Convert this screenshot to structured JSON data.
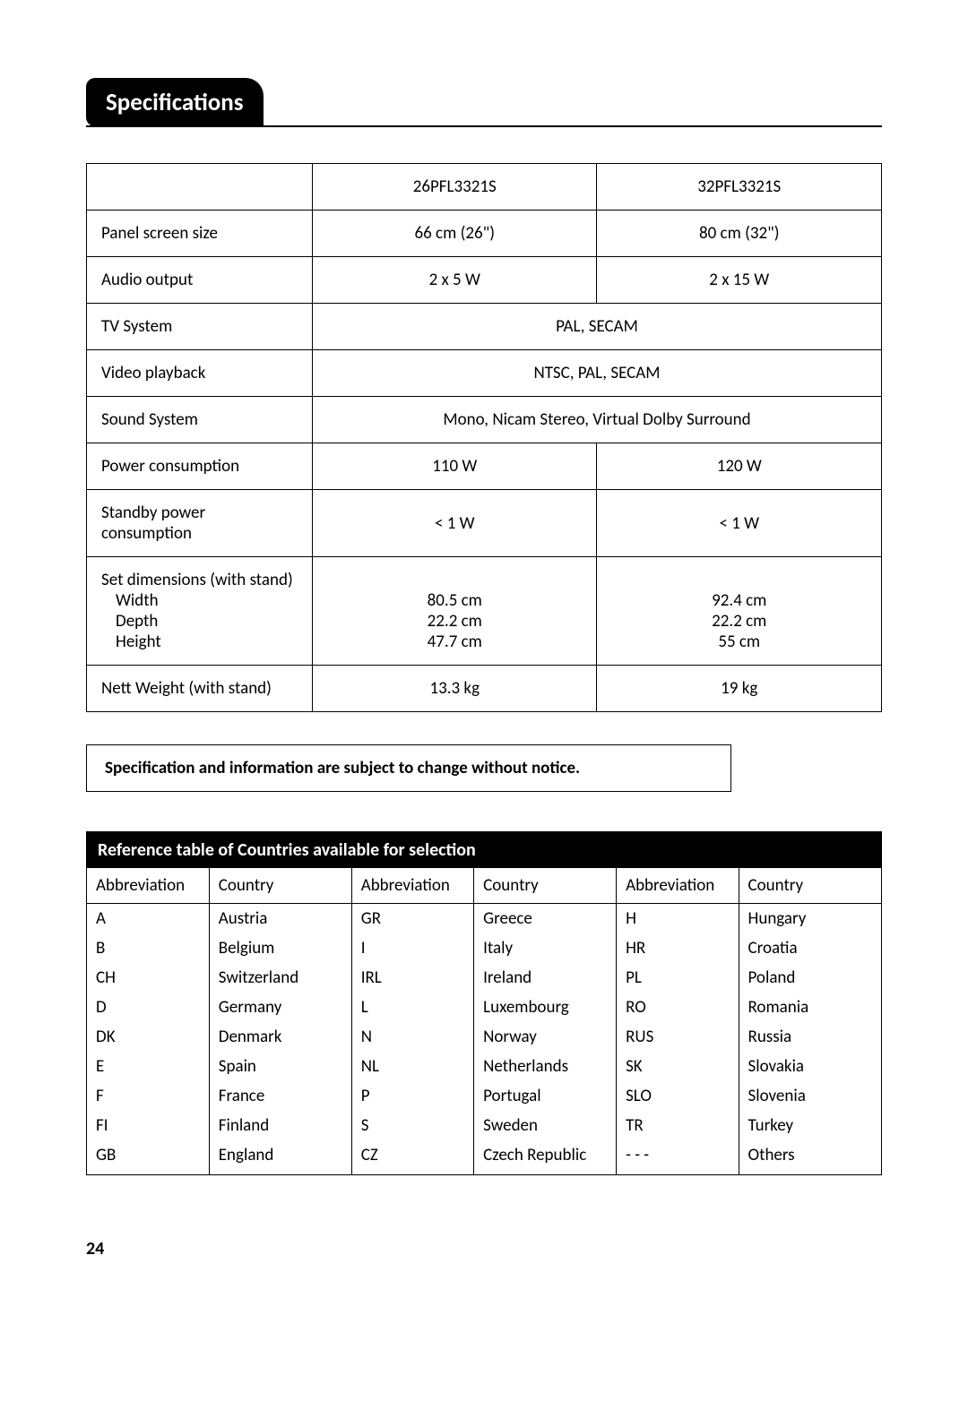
{
  "title": "Specifications",
  "page_number": "24",
  "notice": "Specification and information are subject to change without notice.",
  "spec_table": {
    "models": [
      "26PFL3321S",
      "32PFL3321S"
    ],
    "rows": [
      {
        "label": "Panel screen size",
        "type": "pair",
        "values": [
          "66 cm (26\")",
          "80 cm (32\")"
        ]
      },
      {
        "label": "Audio output",
        "type": "pair",
        "values": [
          "2 x 5 W",
          "2 x 15 W"
        ]
      },
      {
        "label": "TV System",
        "type": "merged",
        "value": "PAL,    SECAM"
      },
      {
        "label": "Video playback",
        "type": "merged",
        "value": "NTSC,  PAL,  SECAM"
      },
      {
        "label": "Sound System",
        "type": "merged",
        "value": "Mono,  Nicam Stereo,  Virtual Dolby Surround"
      },
      {
        "label": "Power consumption",
        "type": "pair",
        "values": [
          "110 W",
          "120 W"
        ]
      },
      {
        "label": "Standby power consumption",
        "type": "pair",
        "values": [
          "< 1 W",
          "< 1 W"
        ]
      },
      {
        "label": "Set dimensions (with stand)",
        "type": "dims",
        "sub": [
          "Width",
          "Depth",
          "Height"
        ],
        "col1": [
          "80.5 cm",
          "22.2 cm",
          "47.7 cm"
        ],
        "col2": [
          "92.4 cm",
          "22.2 cm",
          "55 cm"
        ]
      },
      {
        "label": "Nett Weight (with stand)",
        "type": "pair",
        "values": [
          "13.3 kg",
          "19 kg"
        ]
      }
    ]
  },
  "reference_table": {
    "title": "Reference table of Countries available for selection",
    "headers": [
      "Abbreviation",
      "Country",
      "Abbreviation",
      "Country",
      "Abbreviation",
      "Country"
    ],
    "rows": [
      [
        "A",
        "Austria",
        "GR",
        "Greece",
        "H",
        "Hungary"
      ],
      [
        "B",
        "Belgium",
        "I",
        "Italy",
        "HR",
        "Croatia"
      ],
      [
        "CH",
        "Switzerland",
        "IRL",
        "Ireland",
        "PL",
        "Poland"
      ],
      [
        "D",
        "Germany",
        "L",
        "Luxembourg",
        "RO",
        "Romania"
      ],
      [
        "DK",
        "Denmark",
        "N",
        "Norway",
        "RUS",
        "Russia"
      ],
      [
        "E",
        "Spain",
        "NL",
        "Netherlands",
        "SK",
        "Slovakia"
      ],
      [
        "F",
        "France",
        "P",
        "Portugal",
        "SLO",
        "Slovenia"
      ],
      [
        "FI",
        "Finland",
        "S",
        "Sweden",
        "TR",
        "Turkey"
      ],
      [
        "GB",
        "England",
        "CZ",
        "Czech Republic",
        "- - -",
        "Others"
      ]
    ]
  },
  "colors": {
    "page_bg": "#ffffff",
    "text": "#000000",
    "pill_bg": "#000000",
    "pill_fg": "#ffffff",
    "table_border": "#000000",
    "ref_header_bg": "#000000",
    "ref_header_fg": "#ffffff"
  },
  "typography": {
    "base_family": "Gill Sans",
    "title_size_pt": 20,
    "body_size_pt": 14
  }
}
